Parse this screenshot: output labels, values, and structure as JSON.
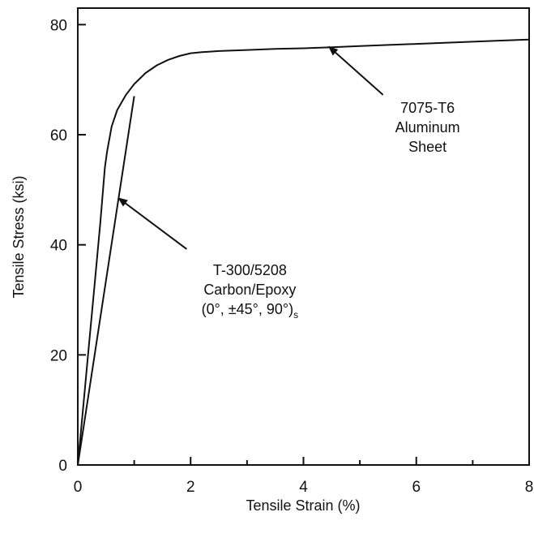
{
  "chart_data": {
    "type": "line",
    "xlabel": "Tensile Strain (%)",
    "ylabel": "Tensile Stress (ksi)",
    "xlim": [
      0,
      8
    ],
    "ylim": [
      0,
      83
    ],
    "x_ticks": [
      0,
      2,
      4,
      6,
      8
    ],
    "y_ticks": [
      0,
      20,
      40,
      60,
      80
    ],
    "x_minor_ticks": [
      1,
      3,
      5,
      7
    ],
    "grid": false,
    "series": [
      {
        "name": "7075-T6 Aluminum Sheet",
        "x": [
          0,
          0.1,
          0.2,
          0.3,
          0.4,
          0.48,
          0.52,
          0.6,
          0.7,
          0.85,
          1.0,
          1.2,
          1.4,
          1.6,
          1.8,
          2.0,
          2.2,
          2.5,
          3.0,
          3.5,
          4.0,
          4.5,
          5.0,
          5.5,
          6.0,
          6.5,
          7.0,
          7.5,
          8.0
        ],
        "values": [
          0,
          11,
          22,
          33,
          44,
          54,
          57,
          61.5,
          64.5,
          67.2,
          69.2,
          71.2,
          72.6,
          73.6,
          74.3,
          74.8,
          75.0,
          75.2,
          75.4,
          75.6,
          75.7,
          75.9,
          76.1,
          76.3,
          76.5,
          76.7,
          76.9,
          77.1,
          77.3
        ]
      },
      {
        "name": "T-300/5208 Carbon/Epoxy (0°, ±45°, 90°)s",
        "x": [
          0,
          1.0
        ],
        "values": [
          0,
          67
        ]
      }
    ],
    "annotations": [
      {
        "lines": [
          "7075-T6",
          "Aluminum",
          "Sheet"
        ],
        "points_to": [
          4.45,
          76.0
        ],
        "text_at": [
          6.2,
          64
        ]
      },
      {
        "lines": [
          "T-300/5208",
          "Carbon/Epoxy",
          "(0°, ±45°, 90°)"
        ],
        "subscript": "s",
        "points_to": [
          0.72,
          48.5
        ],
        "text_at": [
          3.05,
          34.5
        ]
      }
    ]
  }
}
